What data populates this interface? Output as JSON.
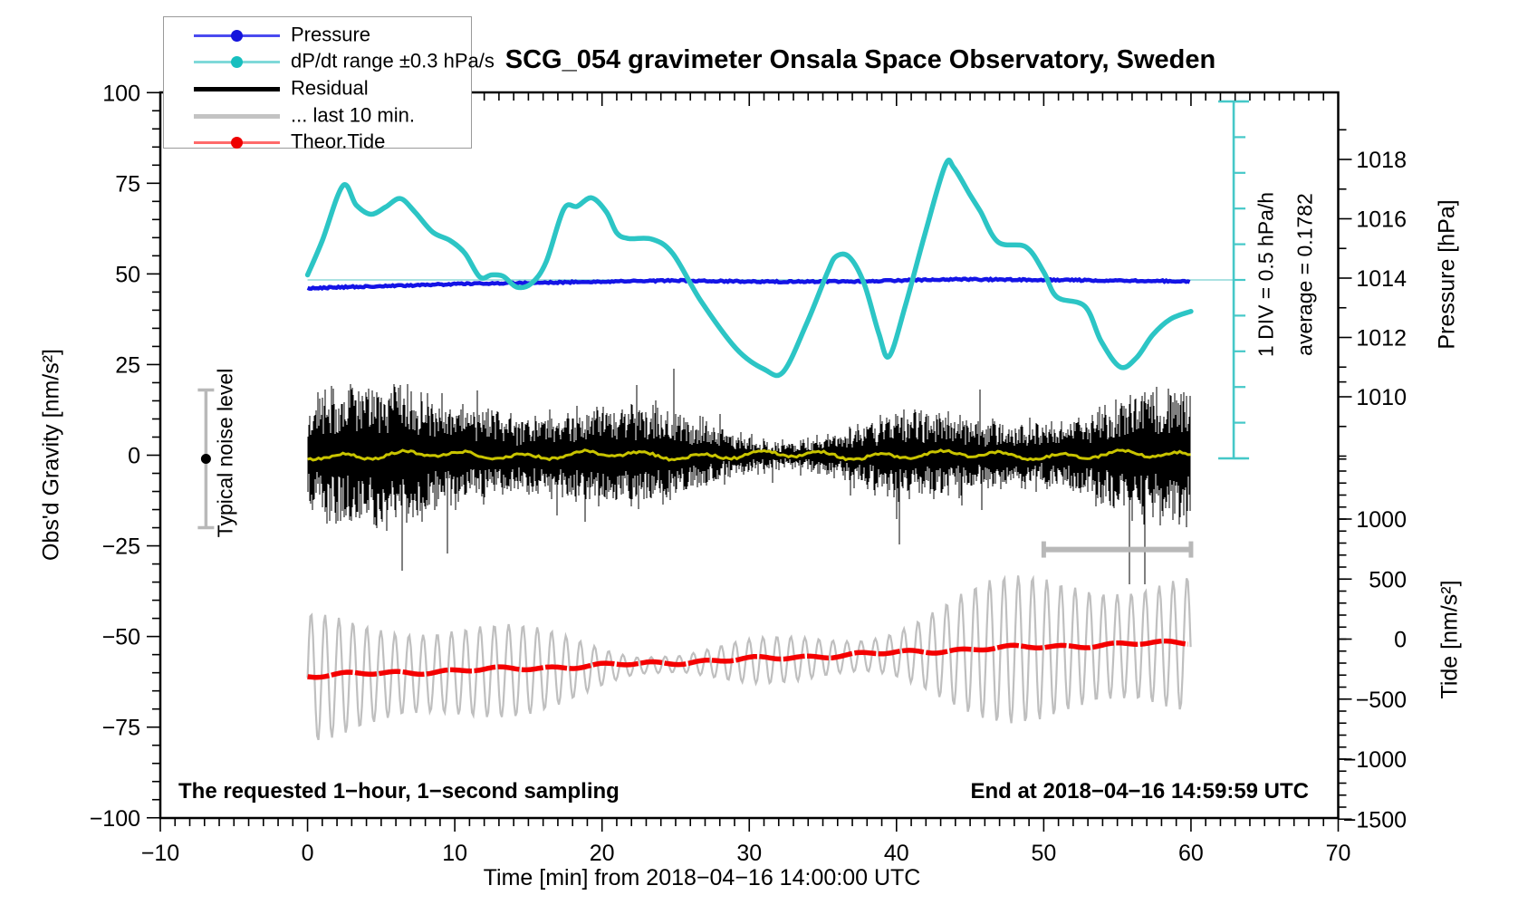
{
  "title": "SCG_054 gravimeter Onsala Space Observatory, Sweden",
  "legend": {
    "items": [
      {
        "label": "Pressure",
        "line_color": "#4a4af0",
        "dot_color": "#1414dc",
        "thick": false,
        "dot": true
      },
      {
        "label": "dP/dt range ±0.3 hPa/s",
        "line_color": "#7fd9d9",
        "dot_color": "#17bfbf",
        "thick": false,
        "dot": true
      },
      {
        "label": "Residual",
        "line_color": "#000000",
        "dot_color": "#000000",
        "thick": true,
        "dot": false
      },
      {
        "label": "... last 10 min.",
        "line_color": "#c3c3c3",
        "dot_color": "#c3c3c3",
        "thick": true,
        "dot": false
      },
      {
        "label": "Theor.Tide",
        "line_color": "#ff6a6a",
        "dot_color": "#ee0000",
        "thick": false,
        "dot": true
      }
    ]
  },
  "axes": {
    "x": {
      "title": "Time [min] from 2018−04−16 14:00:00 UTC",
      "min": -10,
      "max": 70,
      "major_step": 10,
      "minor_step": 1,
      "tick_labels": [
        "−10",
        "0",
        "10",
        "20",
        "30",
        "40",
        "50",
        "60",
        "70"
      ],
      "tick_values": [
        -10,
        0,
        10,
        20,
        30,
        40,
        50,
        60,
        70
      ]
    },
    "gravity": {
      "title": "Obs'd Gravity [nm/s²]",
      "min": -100,
      "max": 100,
      "major_step": 25,
      "minor_step": 5,
      "tick_labels": [
        "100",
        "75",
        "50",
        "25",
        "0",
        "−25",
        "−50",
        "−75",
        "−100"
      ],
      "tick_values": [
        100,
        75,
        50,
        25,
        0,
        -25,
        -50,
        -75,
        -100
      ]
    },
    "pressure": {
      "title": "Pressure [hPa]",
      "tick_labels": [
        "1018",
        "1016",
        "1014",
        "1012",
        "1010"
      ],
      "tick_values": [
        1018,
        1016,
        1014,
        1012,
        1010
      ],
      "minor_values": [
        1019,
        1017,
        1015,
        1013,
        1011,
        1010.5,
        1009,
        1008
      ]
    },
    "tide": {
      "title": "Tide [nm/s²]",
      "tick_labels": [
        "1000",
        "500",
        "0",
        "−500",
        "−1000",
        "−1500"
      ],
      "tick_values": [
        1000,
        500,
        0,
        -500,
        -1000,
        -1500
      ],
      "minor_step": 100,
      "minor_top": 1500
    }
  },
  "annotations": {
    "div_note": "1 DIV = 0.5 hPa/h",
    "avg_note": "average = 0.1782",
    "noise_label": "Typical noise level",
    "sampling_note": "The requested 1−hour, 1−second sampling",
    "end_note": "End at 2018−04−16 14:59:59 UTC"
  },
  "colors": {
    "pressure_line": "#1414e6",
    "dpdt_line": "#2cc5c5",
    "dpdt_scalebar": "#45c8c8",
    "dpdt_centerline": "#8fd8d8",
    "residual": "#000000",
    "residual_mean_line": "#c9c400",
    "tide_line": "#f40000",
    "last10_wave": "#bfbfbf",
    "last10_bar": "#b8b8b8",
    "noise_bar": "#b9b9b9",
    "frame": "#000000"
  },
  "chart_data": {
    "type": "line",
    "xlabel": "Time [min] from 2018−04−16 14:00:00 UTC",
    "x_range_min": [
      -10,
      70
    ],
    "gravity_range": [
      -100,
      100
    ],
    "grid": false,
    "series": [
      {
        "name": "Pressure",
        "axis": "pressure_hPa",
        "units": "hPa",
        "points": [
          [
            0,
            1013.66
          ],
          [
            5,
            1013.73
          ],
          [
            10,
            1013.8
          ],
          [
            15,
            1013.84
          ],
          [
            19,
            1013.87
          ],
          [
            25,
            1013.92
          ],
          [
            31,
            1013.88
          ],
          [
            37.5,
            1013.89
          ],
          [
            43.7,
            1013.96
          ],
          [
            50,
            1013.94
          ],
          [
            56.5,
            1013.91
          ],
          [
            60,
            1013.89
          ]
        ]
      },
      {
        "name": "dP/dt",
        "axis": "hPa_per_h",
        "zero_ref_hPa_per_h": 0,
        "div_value": 0.5,
        "points": [
          [
            0,
            0.07
          ],
          [
            1,
            0.55
          ],
          [
            2.4,
            1.32
          ],
          [
            3.3,
            1.05
          ],
          [
            4.3,
            0.92
          ],
          [
            5.3,
            1.02
          ],
          [
            6.3,
            1.14
          ],
          [
            7.3,
            0.95
          ],
          [
            8.5,
            0.67
          ],
          [
            9.7,
            0.55
          ],
          [
            10.7,
            0.37
          ],
          [
            11.7,
            0.04
          ],
          [
            12.5,
            0.07
          ],
          [
            13.3,
            0.05
          ],
          [
            14.2,
            -0.1
          ],
          [
            15.2,
            -0.05
          ],
          [
            16.2,
            0.25
          ],
          [
            17.4,
            0.99
          ],
          [
            18.3,
            1.03
          ],
          [
            19.3,
            1.15
          ],
          [
            20.3,
            0.95
          ],
          [
            21.0,
            0.66
          ],
          [
            21.8,
            0.58
          ],
          [
            23.4,
            0.57
          ],
          [
            24.8,
            0.37
          ],
          [
            26.7,
            -0.29
          ],
          [
            29.1,
            -0.96
          ],
          [
            31.0,
            -1.25
          ],
          [
            32.3,
            -1.29
          ],
          [
            33.9,
            -0.61
          ],
          [
            35.3,
            0.1
          ],
          [
            35.9,
            0.33
          ],
          [
            36.8,
            0.32
          ],
          [
            37.8,
            -0.05
          ],
          [
            38.8,
            -0.75
          ],
          [
            39.5,
            -1.07
          ],
          [
            40.6,
            -0.36
          ],
          [
            41.9,
            0.62
          ],
          [
            43.3,
            1.6
          ],
          [
            43.9,
            1.57
          ],
          [
            45.0,
            1.19
          ],
          [
            45.7,
            0.96
          ],
          [
            46.9,
            0.53
          ],
          [
            48.8,
            0.46
          ],
          [
            50.0,
            0.11
          ],
          [
            50.9,
            -0.24
          ],
          [
            52.8,
            -0.37
          ],
          [
            53.9,
            -0.86
          ],
          [
            55.2,
            -1.22
          ],
          [
            56.3,
            -1.09
          ],
          [
            57.4,
            -0.77
          ],
          [
            58.6,
            -0.55
          ],
          [
            60,
            -0.44
          ]
        ]
      },
      {
        "name": "Theor.Tide",
        "axis": "tide_nm_s2",
        "units": "nm/s²",
        "points": [
          [
            0,
            -306
          ],
          [
            8,
            -272
          ],
          [
            16,
            -238
          ],
          [
            24,
            -199
          ],
          [
            31,
            -162
          ],
          [
            39,
            -119
          ],
          [
            46,
            -79
          ],
          [
            53,
            -52
          ],
          [
            60,
            -26
          ]
        ]
      },
      {
        "name": "Residual",
        "axis": "gravity_nm_s2",
        "units": "nm/s²",
        "generator": {
          "seed": 42,
          "center": 0,
          "typical_halfwidth_nm": 11,
          "spike_max_nm": 35,
          "span_min": [
            0,
            60
          ]
        }
      },
      {
        "name": "... last 10 min.",
        "axis": "tide_nm_s2",
        "generator": {
          "period_min": 0.96,
          "amplitude_range_nm": [
            120,
            800
          ],
          "centered_on": "Theor.Tide",
          "span_min": [
            0,
            60
          ]
        }
      }
    ],
    "markers": {
      "last10_bar": {
        "from_min": 50,
        "to_min": 60,
        "gravity_level": -26
      },
      "noise_errorbar": {
        "x_min": -6.9,
        "top_nm": 18,
        "bottom_nm": -20,
        "dot_nm": -1
      },
      "dpdt_scalebar": {
        "x_min": 62.9,
        "top_div": 5,
        "bottom_div": -5,
        "div_hPa_per_h": 0.5,
        "average_hPa_per_h": 0.1782
      }
    }
  }
}
